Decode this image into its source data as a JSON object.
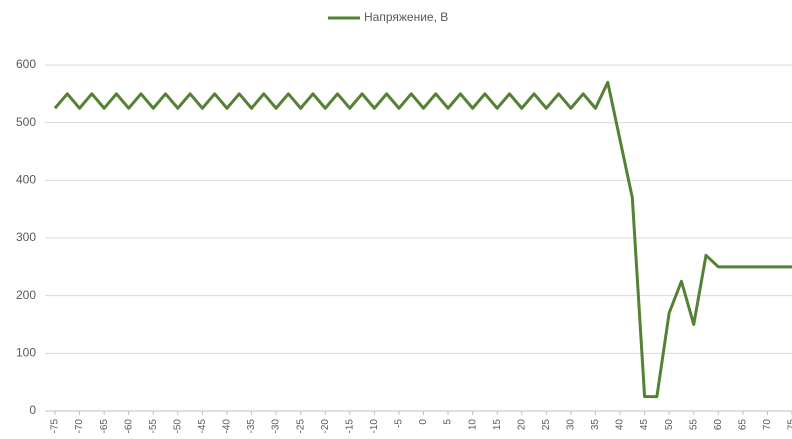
{
  "chart_data": {
    "type": "line",
    "series": [
      {
        "name": "Напряжение, В",
        "color": "#548235",
        "values": [
          525,
          550,
          525,
          550,
          525,
          550,
          525,
          550,
          525,
          550,
          525,
          550,
          525,
          550,
          525,
          550,
          525,
          550,
          525,
          550,
          525,
          550,
          525,
          550,
          525,
          550,
          525,
          550,
          525,
          550,
          525,
          550,
          525,
          550,
          525,
          550,
          525,
          550,
          525,
          550,
          525,
          550,
          525,
          550,
          525,
          570,
          470,
          370,
          25,
          25,
          170,
          225,
          150,
          270,
          250,
          250,
          250,
          250,
          250,
          250,
          250
        ]
      }
    ],
    "categories": [
      "-75",
      null,
      "-70",
      null,
      "-65",
      null,
      "-60",
      null,
      "-55",
      null,
      "-50",
      null,
      "-45",
      null,
      "-40",
      null,
      "-35",
      null,
      "-30",
      null,
      "-25",
      null,
      "-20",
      null,
      "-15",
      null,
      "-10",
      null,
      "-5",
      null,
      "0",
      null,
      "5",
      null,
      "10",
      null,
      "15",
      null,
      "20",
      null,
      "25",
      null,
      "30",
      null,
      "35",
      null,
      "40",
      null,
      "45",
      null,
      "50",
      null,
      "55",
      null,
      "60",
      null,
      "65",
      null,
      "70",
      null,
      "75"
    ],
    "ylim": [
      0,
      600
    ],
    "yticks": [
      0,
      100,
      200,
      300,
      400,
      500,
      600
    ],
    "grid": true,
    "legend": "top"
  }
}
